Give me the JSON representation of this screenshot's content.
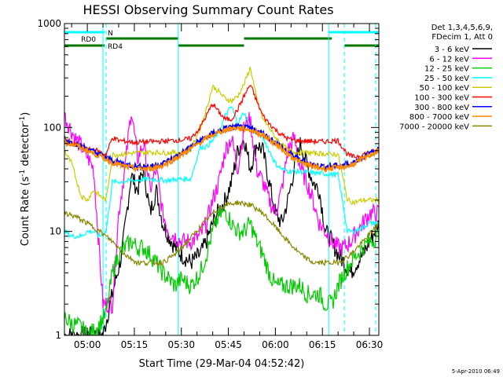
{
  "chart_data": {
    "type": "line",
    "title": "HESSI Observing Summary Count Rates",
    "xlabel": "Start Time (29-Mar-04 04:52:42)",
    "ylabel_main": "Count Rate (s",
    "ylabel_sup1": "-1",
    "ylabel_mid": " detector",
    "ylabel_sup2": "-1",
    "ylabel_end": ")",
    "yscale": "log",
    "ylim": [
      1,
      1000
    ],
    "xlim_min": [
      292.7,
      393
    ],
    "y_ticks": [
      "1",
      "10",
      "100",
      "1000"
    ],
    "y_tick_values": [
      1,
      10,
      100,
      1000
    ],
    "x_ticks": [
      "05:00",
      "05:15",
      "05:30",
      "05:45",
      "06:00",
      "06:15",
      "06:30"
    ],
    "x_tick_values_min": [
      300,
      315,
      330,
      345,
      360,
      375,
      390
    ],
    "footer_date": "5-Apr-2010 06:49",
    "legend_header": [
      "Det 1,3,4,5,6,9,",
      "FDecim 1, Att 0"
    ],
    "series": [
      {
        "name": "3 - 6 keV",
        "color": "#000000",
        "x": [
          292.7,
          299,
          302,
          305,
          308,
          311,
          314,
          316,
          318,
          320,
          322,
          324,
          326,
          328,
          330,
          333,
          336,
          338,
          340,
          342,
          344,
          346,
          348,
          350,
          352,
          354,
          356,
          358,
          360,
          362,
          364,
          366,
          368,
          370,
          372,
          374,
          376,
          378,
          380,
          382,
          384,
          386,
          388,
          390,
          393
        ],
        "y": [
          1,
          1,
          1,
          1,
          2.5,
          6,
          35,
          25,
          40,
          15,
          25,
          12,
          9,
          7,
          6,
          5,
          6,
          8,
          12,
          16,
          20,
          30,
          60,
          80,
          40,
          70,
          60,
          30,
          15,
          12,
          20,
          40,
          70,
          45,
          30,
          25,
          10,
          8,
          6,
          5,
          4,
          5,
          6,
          8,
          12
        ]
      },
      {
        "name": "6 - 12 keV",
        "color": "#ff00ff",
        "x": [
          292.7,
          296,
          299,
          302,
          305,
          308,
          310,
          312,
          314,
          316,
          318,
          320,
          322,
          324,
          326,
          328,
          330,
          333,
          336,
          338,
          340,
          342,
          344,
          346,
          348,
          350,
          352,
          354,
          356,
          358,
          360,
          362,
          364,
          366,
          368,
          370,
          372,
          374,
          376,
          378,
          380,
          382,
          384,
          386,
          388,
          390,
          393
        ],
        "y": [
          130,
          80,
          60,
          40,
          2,
          2,
          15,
          40,
          150,
          50,
          70,
          25,
          40,
          15,
          10,
          9,
          8,
          8,
          9,
          12,
          20,
          30,
          60,
          80,
          40,
          100,
          120,
          40,
          30,
          20,
          15,
          25,
          60,
          80,
          40,
          30,
          20,
          12,
          10,
          8,
          7,
          7,
          8,
          10,
          12,
          15,
          15
        ]
      },
      {
        "name": "12 - 25 keV",
        "color": "#00cc00",
        "x": [
          292.7,
          295,
          298,
          300,
          302,
          304,
          306,
          308,
          310,
          312,
          314,
          316,
          318,
          320,
          322,
          324,
          326,
          328,
          330,
          333,
          336,
          338,
          340,
          342,
          344,
          346,
          348,
          350,
          352,
          354,
          356,
          358,
          360,
          362,
          364,
          366,
          368,
          370,
          372,
          374,
          376,
          378,
          380,
          382,
          384,
          386,
          388,
          390,
          393
        ],
        "y": [
          1.5,
          1.3,
          1.2,
          1,
          1.1,
          1.3,
          1.6,
          4,
          6,
          7,
          8,
          7,
          7,
          6,
          5,
          4,
          3.5,
          3,
          3.5,
          3,
          4,
          6,
          10,
          14,
          16,
          12,
          10,
          10,
          12,
          8,
          6,
          4,
          3,
          3,
          3,
          3,
          3,
          2.5,
          2.5,
          2.5,
          2,
          2,
          3,
          4,
          5,
          6,
          7,
          8,
          9
        ]
      },
      {
        "name": "25 - 50 keV",
        "color": "#00ffff",
        "x": [
          292.7,
          295,
          298,
          300,
          302,
          304,
          306,
          308,
          310,
          315,
          320,
          325,
          330,
          333,
          336,
          338,
          340,
          342,
          344,
          346,
          348,
          350,
          352,
          354,
          356,
          358,
          360,
          362,
          364,
          366,
          370,
          375,
          380,
          383,
          385,
          388,
          390,
          393
        ],
        "y": [
          10,
          9,
          9,
          10,
          10,
          9,
          10,
          30,
          30,
          31,
          32,
          31,
          32,
          32,
          65,
          65,
          75,
          90,
          130,
          160,
          110,
          140,
          100,
          90,
          80,
          60,
          45,
          40,
          38,
          38,
          37,
          36,
          35,
          10,
          10,
          11,
          12,
          12
        ]
      },
      {
        "name": "50 - 100 keV",
        "color": "#cccc00",
        "x": [
          292.7,
          295,
          298,
          300,
          302,
          304,
          306,
          308,
          310,
          315,
          320,
          325,
          330,
          333,
          336,
          338,
          340,
          342,
          344,
          346,
          348,
          350,
          352,
          354,
          356,
          358,
          360,
          362,
          364,
          366,
          370,
          375,
          380,
          383,
          385,
          388,
          390,
          393
        ],
        "y": [
          60,
          45,
          22,
          20,
          25,
          22,
          20,
          55,
          55,
          57,
          58,
          57,
          58,
          60,
          100,
          150,
          250,
          220,
          190,
          180,
          200,
          260,
          380,
          190,
          120,
          100,
          80,
          70,
          60,
          58,
          57,
          56,
          55,
          20,
          19,
          20,
          20,
          20
        ]
      },
      {
        "name": "100 - 300 keV",
        "color": "#ff0000",
        "x": [
          292.7,
          295,
          298,
          300,
          302,
          304,
          306,
          308,
          310,
          315,
          320,
          325,
          330,
          333,
          336,
          338,
          340,
          342,
          344,
          346,
          348,
          350,
          352,
          354,
          356,
          358,
          360,
          362,
          364,
          366,
          370,
          375,
          380,
          383,
          385,
          388,
          390,
          393
        ],
        "y": [
          80,
          70,
          65,
          60,
          62,
          58,
          55,
          80,
          75,
          72,
          73,
          74,
          76,
          78,
          100,
          130,
          170,
          140,
          120,
          120,
          150,
          200,
          260,
          180,
          130,
          110,
          95,
          85,
          78,
          75,
          74,
          73,
          75,
          55,
          52,
          55,
          58,
          60
        ]
      },
      {
        "name": "300 - 800 keV",
        "color": "#0000ff",
        "x": [
          292.7,
          296,
          300,
          304,
          308,
          312,
          316,
          320,
          324,
          328,
          332,
          336,
          340,
          344,
          348,
          352,
          356,
          360,
          364,
          368,
          372,
          376,
          380,
          384,
          388,
          392,
          393
        ],
        "y": [
          75,
          70,
          62,
          55,
          48,
          44,
          42,
          42,
          45,
          52,
          62,
          75,
          88,
          98,
          102,
          98,
          88,
          72,
          58,
          48,
          44,
          42,
          43,
          45,
          52,
          60,
          62
        ]
      },
      {
        "name": "800 - 7000 keV",
        "color": "#ff8800",
        "x": [
          292.7,
          296,
          300,
          304,
          308,
          312,
          316,
          320,
          324,
          328,
          332,
          336,
          340,
          344,
          348,
          352,
          356,
          360,
          364,
          368,
          372,
          376,
          380,
          384,
          388,
          392,
          393
        ],
        "y": [
          72,
          68,
          60,
          53,
          46,
          42,
          40,
          40,
          43,
          50,
          60,
          72,
          85,
          95,
          99,
          95,
          85,
          70,
          56,
          46,
          42,
          40,
          41,
          43,
          50,
          58,
          60
        ]
      },
      {
        "name": "7000 - 20000 keV",
        "color": "#888800",
        "x": [
          292.7,
          296,
          300,
          304,
          308,
          312,
          316,
          320,
          324,
          328,
          332,
          336,
          340,
          344,
          348,
          352,
          356,
          360,
          364,
          368,
          372,
          376,
          380,
          384,
          388,
          392,
          393
        ],
        "y": [
          15,
          14,
          12,
          10,
          8,
          6,
          5,
          5,
          5,
          6,
          8,
          11,
          15,
          18,
          19,
          18,
          15,
          11,
          8,
          6,
          5,
          5,
          5,
          6,
          8,
          11,
          12
        ]
      }
    ],
    "obs_bars": [
      {
        "label": "N",
        "color": "#00ffff",
        "row": 0,
        "segments": [
          [
            292.7,
            305.5
          ],
          [
            377,
            393
          ]
        ]
      },
      {
        "label": "RD0",
        "color": "#007700",
        "row": 1,
        "segments": [
          [
            306,
            329
          ],
          [
            350,
            378
          ]
        ]
      },
      {
        "label": "RD4",
        "color": "#007700",
        "row": 2,
        "segments": [
          [
            292.7,
            305.5
          ],
          [
            329,
            350
          ],
          [
            382,
            393
          ]
        ]
      }
    ],
    "vlines_solid_min": [
      305,
      329,
      377
    ],
    "vlines_dashed_min": [
      306,
      382,
      392
    ]
  }
}
